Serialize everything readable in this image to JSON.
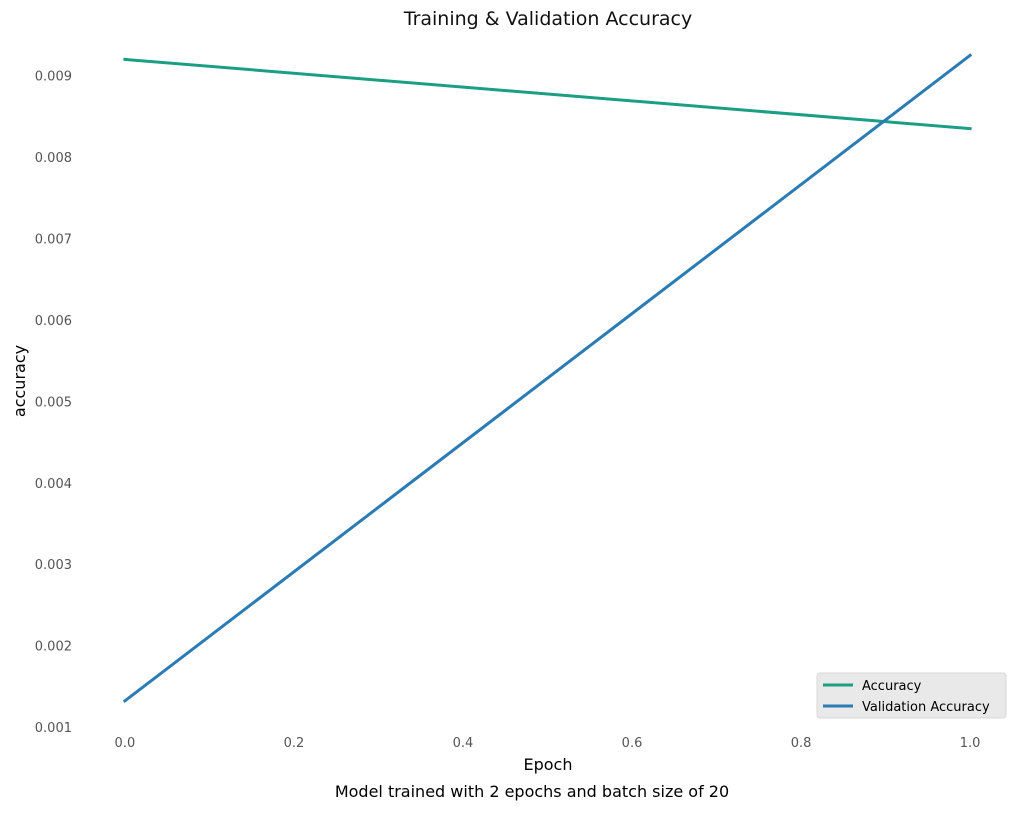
{
  "chart_data": {
    "type": "line",
    "title": "Training & Validation Accuracy",
    "xlabel": "Epoch",
    "ylabel": "accuracy",
    "caption": "Model trained with 2 epochs and batch size of 20",
    "xlim": [
      -0.02,
      1.02
    ],
    "ylim": [
      0.001,
      0.0095
    ],
    "x_ticks": [
      "0.0",
      "0.2",
      "0.4",
      "0.6",
      "0.8",
      "1.0"
    ],
    "x_tick_values": [
      0.0,
      0.2,
      0.4,
      0.6,
      0.8,
      1.0
    ],
    "y_ticks": [
      "0.001",
      "0.002",
      "0.003",
      "0.004",
      "0.005",
      "0.006",
      "0.007",
      "0.008",
      "0.009"
    ],
    "y_tick_values": [
      0.001,
      0.002,
      0.003,
      0.004,
      0.005,
      0.006,
      0.007,
      0.008,
      0.009
    ],
    "grid": false,
    "legend_position": "bottom-right",
    "series": [
      {
        "name": "Accuracy",
        "color": "#1a9e84",
        "x": [
          0.0,
          1.0
        ],
        "y": [
          0.0092,
          0.00835
        ]
      },
      {
        "name": "Validation Accuracy",
        "color": "#2b7bb4",
        "x": [
          0.0,
          1.0
        ],
        "y": [
          0.00132,
          0.00925
        ]
      }
    ]
  }
}
